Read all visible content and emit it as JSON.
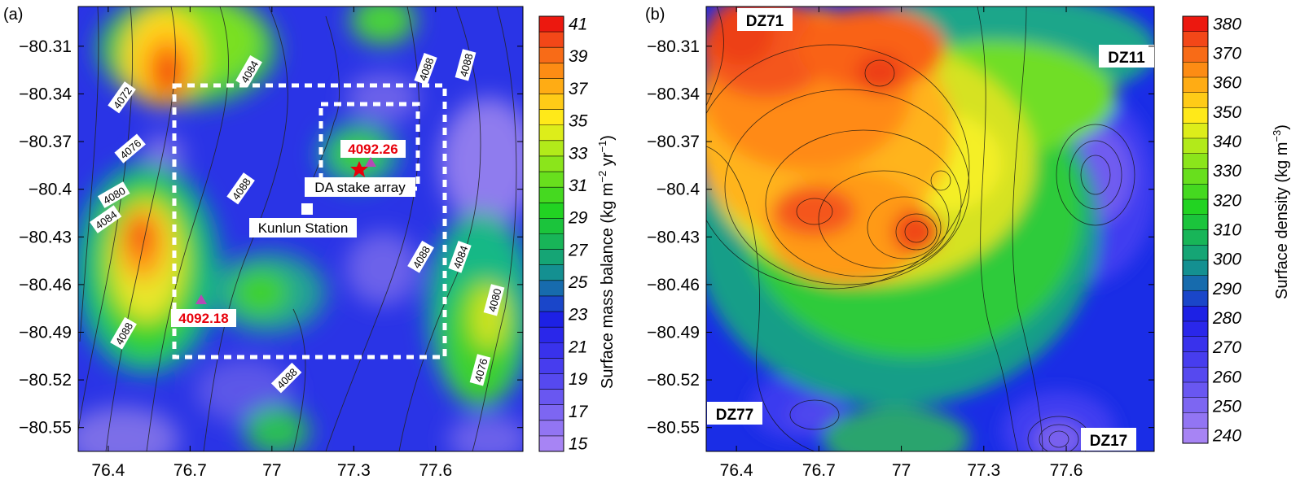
{
  "chart_data": [
    {
      "type": "heatmap",
      "panel_label": "(a)",
      "x_ticks": [
        "76.4",
        "76.7",
        "77",
        "77.3",
        "77.6"
      ],
      "y_ticks": [
        "−80.31",
        "−80.34",
        "−80.37",
        "−80.4",
        "−80.43",
        "−80.46",
        "−80.49",
        "−80.52",
        "−80.55"
      ],
      "x_values": [
        76.4,
        76.7,
        77.0,
        77.3,
        77.6
      ],
      "y_values": [
        -80.31,
        -80.34,
        -80.37,
        -80.4,
        -80.43,
        -80.46,
        -80.49,
        -80.52,
        -80.55
      ],
      "xlim": [
        76.29,
        77.92
      ],
      "ylim": [
        -80.565,
        -80.285
      ],
      "colorbar": {
        "label": "Surface mass balance (kg m−2 yr−1)",
        "label_main": "Surface mass balance (kg m",
        "label_exp1": "−2",
        "label_mid": " yr",
        "label_exp2": "−1",
        "label_end": ")",
        "ticks": [
          "41",
          "39",
          "37",
          "35",
          "33",
          "31",
          "29",
          "27",
          "25",
          "23",
          "21",
          "19",
          "17",
          "15"
        ],
        "range": [
          15,
          42
        ]
      },
      "elevation_contour_labels": [
        "4072",
        "4076",
        "4080",
        "4084",
        "4084",
        "4088",
        "4088",
        "4088",
        "4088",
        "4084",
        "4080",
        "4076",
        "4088",
        "4088",
        "4084"
      ],
      "annotations": {
        "kunlun_station": "Kunlun Station",
        "da_stake_array": "DA stake array",
        "elev_1": "4092.26",
        "elev_2": "4092.18"
      }
    },
    {
      "type": "heatmap",
      "panel_label": "(b)",
      "x_ticks": [
        "76.4",
        "76.7",
        "77",
        "77.3",
        "77.6"
      ],
      "y_ticks": [
        "−80.31",
        "−80.34",
        "−80.37",
        "−80.4",
        "−80.43",
        "−80.46",
        "−80.49",
        "−80.52",
        "−80.55"
      ],
      "x_values": [
        76.4,
        76.7,
        77.0,
        77.3,
        77.6
      ],
      "y_values": [
        -80.31,
        -80.34,
        -80.37,
        -80.4,
        -80.43,
        -80.46,
        -80.49,
        -80.52,
        -80.55
      ],
      "xlim": [
        76.29,
        77.92
      ],
      "ylim": [
        -80.565,
        -80.285
      ],
      "colorbar": {
        "label_main": "Surface density (kg m",
        "label_exp1": "−3",
        "label_end": ")",
        "ticks": [
          "380",
          "370",
          "360",
          "350",
          "340",
          "330",
          "320",
          "310",
          "300",
          "290",
          "280",
          "270",
          "260",
          "250",
          "240"
        ],
        "range": [
          240,
          385
        ]
      },
      "site_labels": [
        "DZ71",
        "DZ11",
        "DZ77",
        "DZ17"
      ]
    }
  ]
}
